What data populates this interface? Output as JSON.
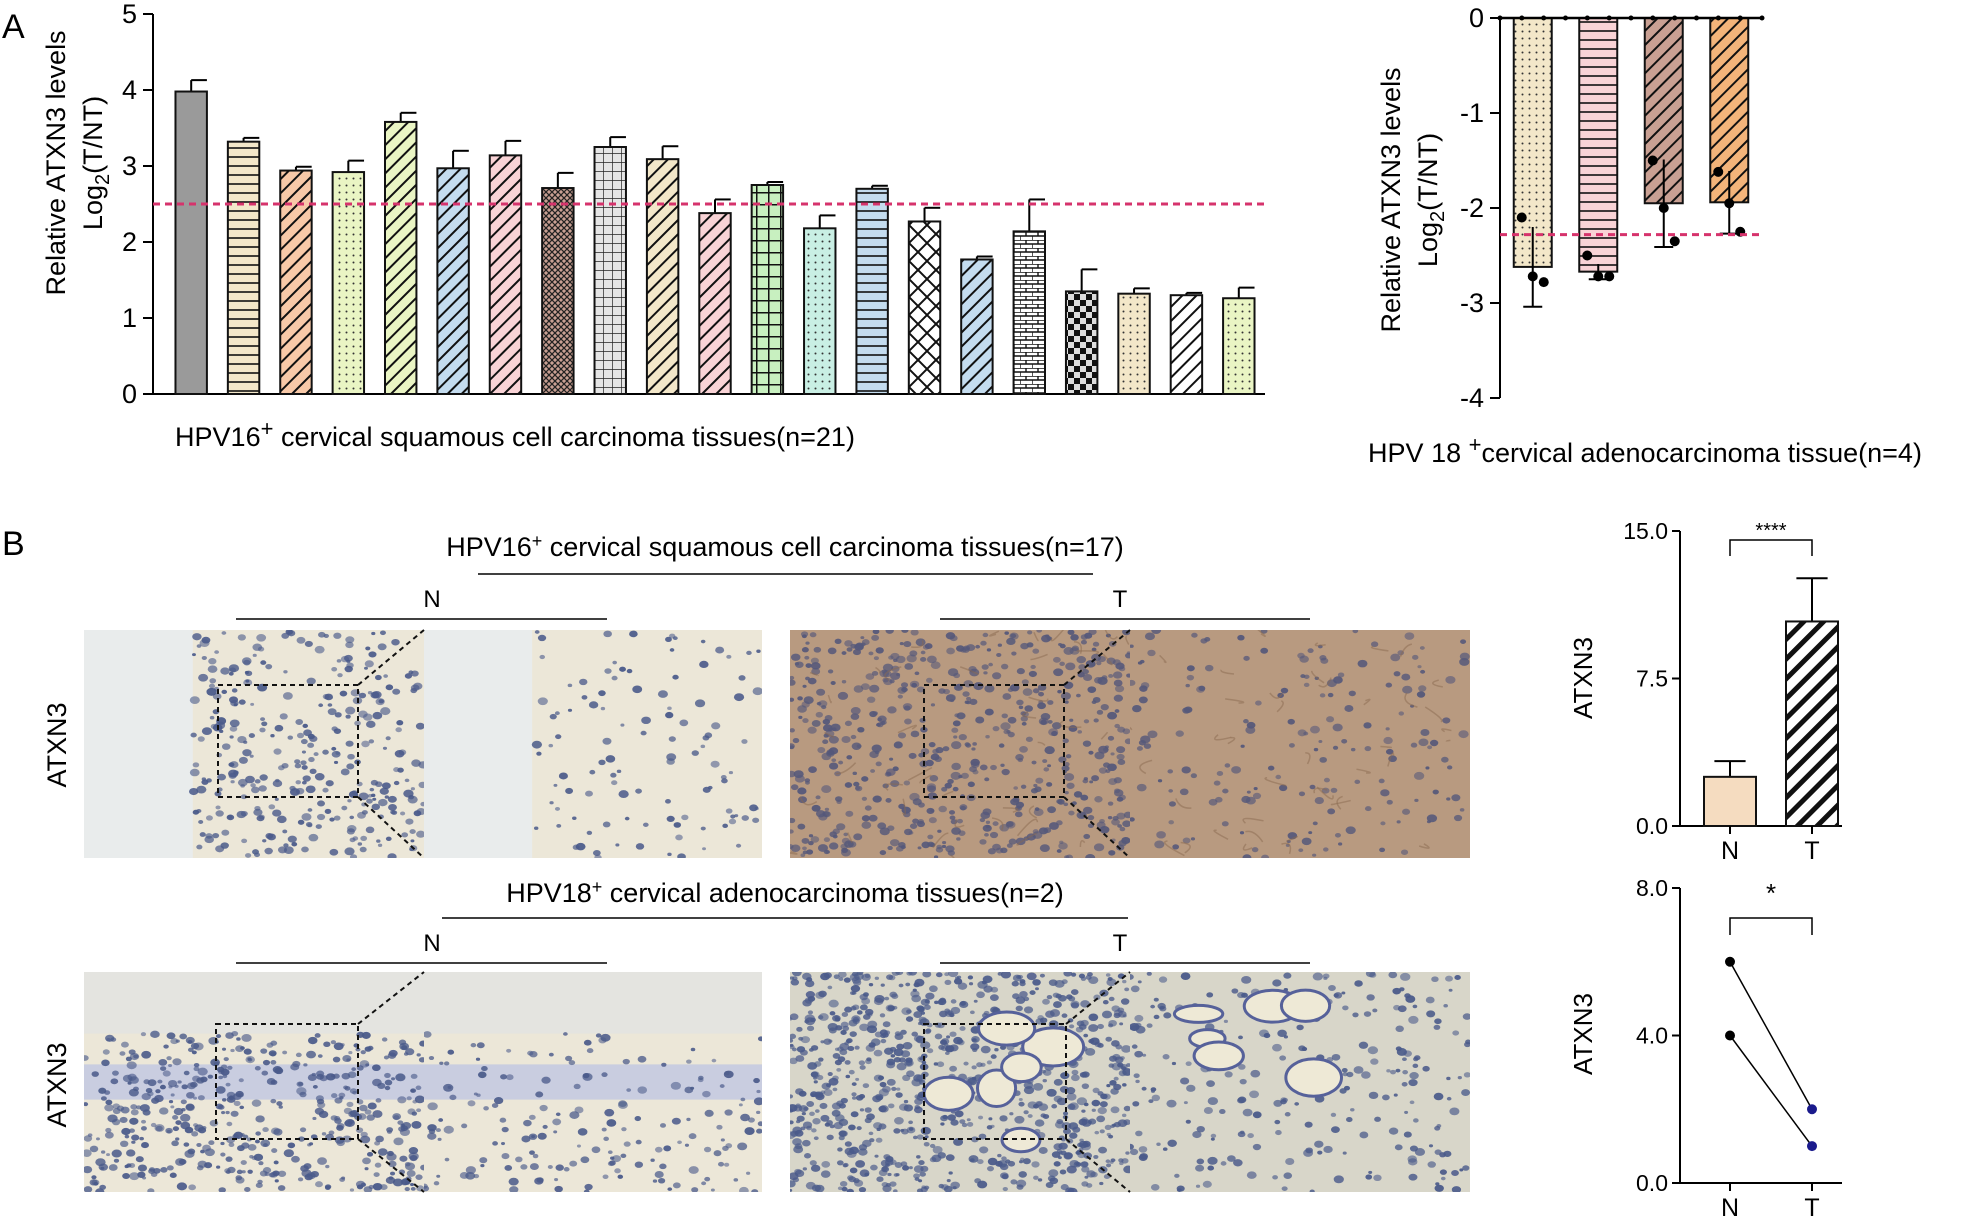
{
  "panel_labels": {
    "a": "A",
    "b": "B"
  },
  "colors": {
    "ref_line": "#d6336c",
    "bar_grey": "#9a9a9a",
    "bar_beige": "#f3e7c9",
    "bar_green_light": "#eaf5c4",
    "bar_peach": "#f8c9a8",
    "bar_blue_light": "#c4dcef",
    "bar_pink": "#f9d3d6",
    "bar_brown": "#c9a093",
    "bar_orange": "#f3b47a",
    "bar_mint": "#c9efe4",
    "he_normal_bg": "#ece7d8",
    "he_tumor_bg": "#b89a80",
    "he_nuclei": "#4a5a8a",
    "line_point_blue": "#1a1a8c"
  },
  "chart_data": [
    {
      "id": "A-left",
      "type": "bar",
      "title": "",
      "xlabel_main": "HPV16",
      "xlabel_sup": "+",
      "xlabel_rest": " cervical squamous cell carcinoma tissues(n=21)",
      "ylabel_line1": "Relative  ATXN3 levels",
      "ylabel_line2": "Log",
      "ylabel_sub": "2",
      "ylabel_line2_rest": "(T/NT)",
      "ylim": [
        0,
        5
      ],
      "yticks": [
        "0",
        "1",
        "2",
        "3",
        "4",
        "5"
      ],
      "reference_line": 2.5,
      "values": [
        3.98,
        3.32,
        2.94,
        2.92,
        3.58,
        2.97,
        3.14,
        2.71,
        3.25,
        3.09,
        2.38,
        2.75,
        2.18,
        2.7,
        2.27,
        1.77,
        2.14,
        1.35,
        1.32,
        1.3,
        1.26
      ],
      "errors": [
        0.15,
        0.05,
        0.05,
        0.15,
        0.12,
        0.23,
        0.19,
        0.2,
        0.13,
        0.17,
        0.18,
        0.04,
        0.17,
        0.04,
        0.18,
        0.04,
        0.42,
        0.29,
        0.07,
        0.03,
        0.14
      ],
      "patterns": [
        "solid-grey",
        "hstripe-beige",
        "diag-peach",
        "dots-green",
        "diag-green",
        "diag-blue",
        "diag-pink",
        "crosshatch-brown",
        "grid-grey",
        "diag-beige",
        "diag-pink",
        "grid-green",
        "dots-mint",
        "hstripe-blue",
        "xhatch-white",
        "diag-blue",
        "brick-white",
        "checker-dark",
        "dots-beige",
        "diag-white",
        "dots-green"
      ]
    },
    {
      "id": "A-right",
      "type": "bar",
      "title": "",
      "xlabel_main": "HPV 18 ",
      "xlabel_sup": "+",
      "xlabel_rest": "cervical adenocarcinoma tissue(n=4)",
      "ylabel_line1": "Relative  ATXN3 levels",
      "ylabel_line2": "Log",
      "ylabel_sub": "2",
      "ylabel_line2_rest": "(T/NT)",
      "ylim": [
        -4,
        0
      ],
      "yticks": [
        "0",
        "-1",
        "-2",
        "-3",
        "-4"
      ],
      "reference_line": -2.28,
      "values": [
        -2.62,
        -2.67,
        -1.95,
        -1.94
      ],
      "errors": [
        0.42,
        0.08,
        0.46,
        0.33
      ],
      "points": [
        [
          -2.1,
          -2.72,
          -2.78
        ],
        [
          -2.5,
          -2.72,
          -2.72
        ],
        [
          -1.5,
          -2.0,
          -2.35
        ],
        [
          -1.62,
          -1.95,
          -2.25
        ]
      ],
      "patterns": [
        "dots-beige",
        "hstripe-pink",
        "diag-brown",
        "diag-orange"
      ]
    },
    {
      "id": "B-top",
      "type": "bar",
      "title": "",
      "ylabel": "ATXN3",
      "categories": [
        "N",
        "T"
      ],
      "ylim": [
        0,
        15
      ],
      "yticks": [
        "0.0",
        "7.5",
        "15.0"
      ],
      "values": [
        2.5,
        10.4
      ],
      "errors": [
        0.8,
        2.2
      ],
      "significance": "****",
      "patterns": [
        "solid-beige",
        "diag-dark"
      ]
    },
    {
      "id": "B-bottom",
      "type": "line",
      "title": "",
      "ylabel": "ATXN3",
      "categories": [
        "N",
        "T"
      ],
      "ylim": [
        0,
        8
      ],
      "yticks": [
        "0.0",
        "4.0",
        "8.0"
      ],
      "series": [
        {
          "values": [
            6,
            2
          ]
        },
        {
          "values": [
            4,
            1
          ]
        }
      ],
      "significance": "*"
    }
  ],
  "micrographs": {
    "row1_title_main": "HPV16",
    "row1_title_sup": "+",
    "row1_title_rest": " cervical squamous cell carcinoma tissues(n=17)",
    "row2_title_main": "HPV18",
    "row2_title_sup": "+",
    "row2_title_rest": " cervical adenocarcinoma tissues(n=2)",
    "label_n": "N",
    "label_t": "T",
    "row_label": "ATXN3"
  }
}
